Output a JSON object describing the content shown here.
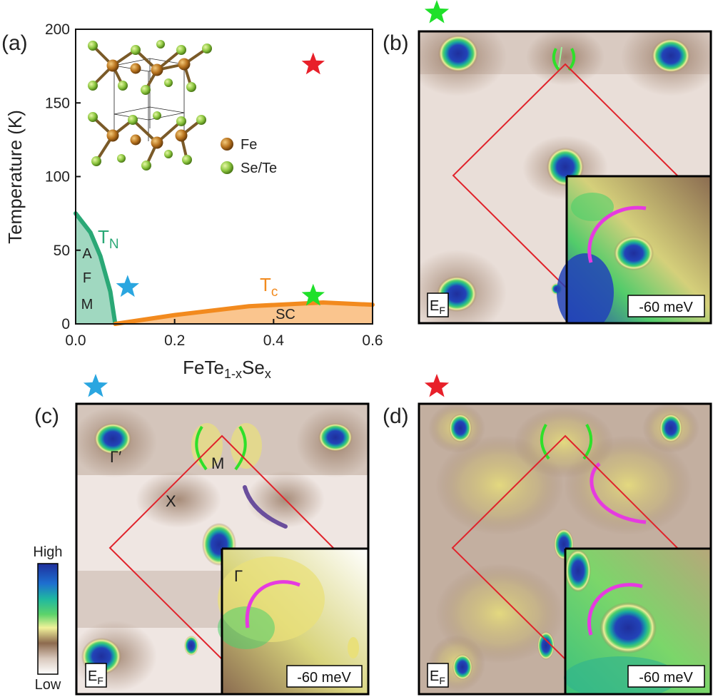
{
  "panel_labels": {
    "a": "(a)",
    "b": "(b)",
    "c": "(c)",
    "d": "(d)"
  },
  "chart_data": {
    "type": "phase-diagram",
    "xlabel_base": "FeTe",
    "xlabel_sub1": "1-x",
    "xlabel_mid": "Se",
    "xlabel_sub2": "x",
    "ylabel": "Temperature (K)",
    "xlim": [
      0.0,
      0.6
    ],
    "ylim": [
      0,
      200
    ],
    "xticks": [
      0.0,
      0.2,
      0.4,
      0.6
    ],
    "xtick_labels": [
      "0.0",
      "0.2",
      "0.4",
      "0.6"
    ],
    "yticks": [
      0,
      50,
      100,
      150,
      200
    ],
    "ytick_labels": [
      "0",
      "50",
      "100",
      "150",
      "200"
    ],
    "tn_curve": {
      "name": "T",
      "sub": "N",
      "color": "#2aa876",
      "x": [
        0.0,
        0.03,
        0.05,
        0.07,
        0.08
      ],
      "y": [
        75,
        62,
        46,
        22,
        0
      ]
    },
    "tc_curve": {
      "name": "T",
      "sub": "c",
      "color": "#f28a1e",
      "x": [
        0.08,
        0.2,
        0.35,
        0.5,
        0.6
      ],
      "y": [
        0,
        6,
        12,
        14.5,
        13
      ]
    },
    "afm_letters": [
      "A",
      "F",
      "M"
    ],
    "sc_label": "SC",
    "markers": [
      {
        "x": 0.48,
        "y": 176,
        "color": "#e8202a",
        "shape": "star"
      },
      {
        "x": 0.105,
        "y": 25,
        "color": "#2aa6e0",
        "shape": "star"
      },
      {
        "x": 0.48,
        "y": 19,
        "color": "#1fe02a",
        "shape": "star"
      }
    ],
    "legend": [
      {
        "label": "Fe",
        "color": "#b8731e"
      },
      {
        "label": "Se/Te",
        "color": "#8cc63f"
      }
    ]
  },
  "maps": {
    "b": {
      "ef_base": "E",
      "ef_sub": "F",
      "inset_label": "-60 meV",
      "star_color": "#1fe02a"
    },
    "c": {
      "ef_base": "E",
      "ef_sub": "F",
      "inset_label": "-60 meV",
      "star_color": "#2aa6e0",
      "points": {
        "gamma_prime": "Γ′",
        "m": "M",
        "x": "X",
        "gamma": "Γ"
      }
    },
    "d": {
      "ef_base": "E",
      "ef_sub": "F",
      "inset_label": "-60 meV",
      "star_color": "#e8202a"
    }
  },
  "colorbar": {
    "high": "High",
    "low": "Low"
  }
}
